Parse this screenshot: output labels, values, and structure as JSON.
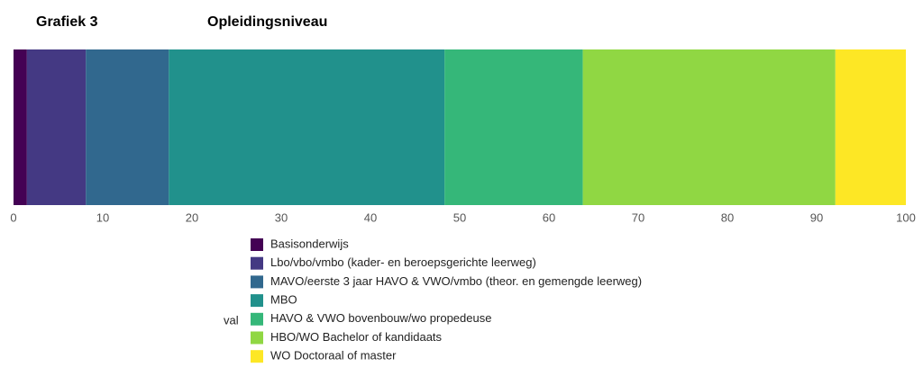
{
  "chart_data": {
    "type": "bar",
    "orientation": "horizontal",
    "stacked": true,
    "figure_label": "Grafiek 3",
    "title": "Opleidingsniveau",
    "legend_title": "val",
    "series": [
      {
        "name": "Basisonderwijs",
        "color": "#440154",
        "values": [
          1.5
        ]
      },
      {
        "name": "Lbo/vbo/vmbo (kader- en beroepsgerichte leerweg)",
        "color": "#443983",
        "values": [
          6.6
        ]
      },
      {
        "name": "MAVO/eerste 3 jaar HAVO & VWO/vmbo (theor. en gemengde leerweg)",
        "color": "#31688e",
        "values": [
          9.3
        ]
      },
      {
        "name": "MBO",
        "color": "#21918c",
        "values": [
          30.9
        ]
      },
      {
        "name": "HAVO & VWO bovenbouw/wo propedeuse",
        "color": "#35b779",
        "values": [
          15.5
        ]
      },
      {
        "name": "HBO/WO Bachelor of kandidaats",
        "color": "#90d743",
        "values": [
          28.3
        ]
      },
      {
        "name": "WO Doctoraal of master",
        "color": "#fde725",
        "values": [
          7.9
        ]
      }
    ],
    "xlim": [
      0,
      100
    ],
    "xticks": [
      0,
      10,
      20,
      30,
      40,
      50,
      60,
      70,
      80,
      90,
      100
    ]
  }
}
